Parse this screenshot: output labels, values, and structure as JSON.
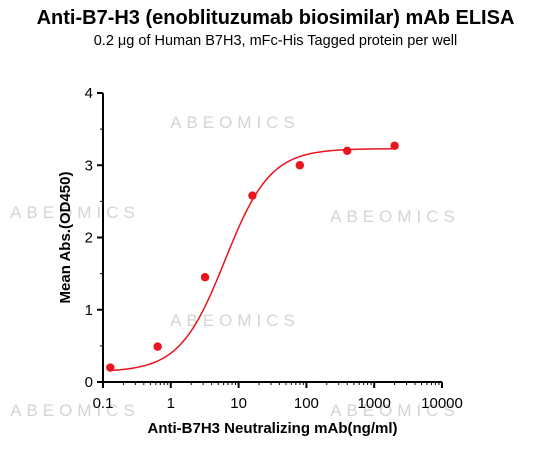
{
  "chart_data": {
    "type": "scatter",
    "title": "Anti-B7-H3 (enoblituzumab biosimilar) mAb ELISA",
    "subtitle": "0.2 μg of Human B7H3, mFc-His Tagged protein per well",
    "xlabel": "Anti-B7H3 Neutralizing mAb(ng/ml)",
    "ylabel": "Mean Abs.(OD450)",
    "x_scale": "log",
    "xlim": [
      0.1,
      10000
    ],
    "ylim": [
      0,
      4
    ],
    "x_ticks": [
      0.1,
      1,
      10,
      100,
      1000,
      10000
    ],
    "x_tick_labels": [
      "0.1",
      "1",
      "10",
      "100",
      "1000",
      "10000"
    ],
    "y_ticks": [
      0,
      1,
      2,
      3,
      4
    ],
    "y_tick_labels": [
      "0",
      "1",
      "2",
      "3",
      "4"
    ],
    "grid": false,
    "legend": "none",
    "watermark": "ABEOMICS",
    "series": [
      {
        "color": "#e8141e",
        "x": [
          0.128,
          0.64,
          3.2,
          16,
          80,
          400,
          2000
        ],
        "y": [
          0.2,
          0.49,
          1.45,
          2.58,
          3.0,
          3.2,
          3.27
        ],
        "fit": {
          "bottom": 0.14,
          "top": 3.23,
          "ec50": 6.3,
          "hill": 1.3
        }
      }
    ]
  }
}
